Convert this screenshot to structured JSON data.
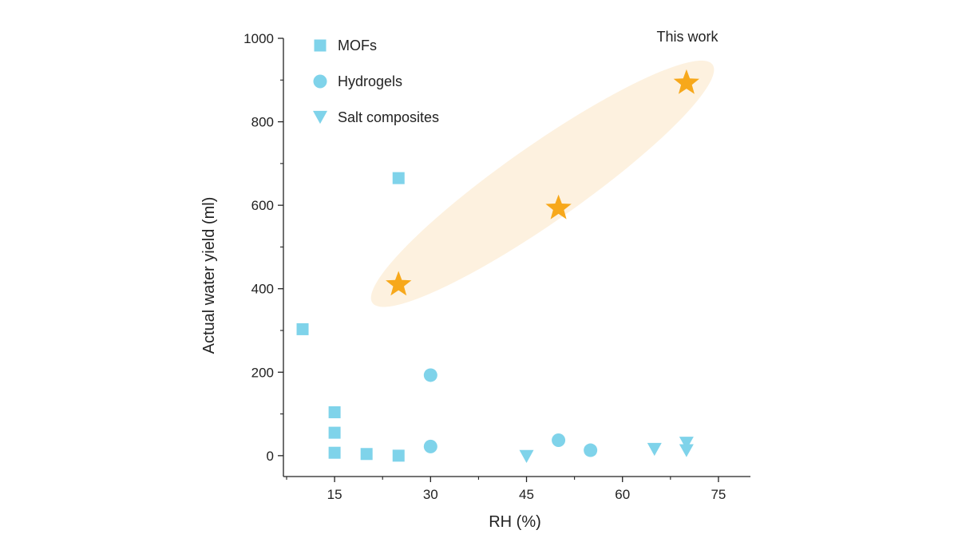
{
  "chart_data": {
    "type": "scatter",
    "xlabel": "RH (%)",
    "ylabel": "Actual water yield (ml)",
    "xlim": [
      7,
      80
    ],
    "ylim": [
      -50,
      1000
    ],
    "xticks": [
      15,
      30,
      45,
      60,
      75
    ],
    "yticks": [
      0,
      200,
      400,
      600,
      800,
      1000
    ],
    "grid": false,
    "legend_position": "top-left",
    "annotation": "This work",
    "highlight_color": "#fdf1df",
    "series": [
      {
        "name": "MOFs",
        "marker": "square",
        "color": "#7fd3ea",
        "points": [
          {
            "x": 10,
            "y": 303
          },
          {
            "x": 15,
            "y": 104
          },
          {
            "x": 15,
            "y": 55
          },
          {
            "x": 15,
            "y": 7
          },
          {
            "x": 20,
            "y": 4
          },
          {
            "x": 25,
            "y": 0
          },
          {
            "x": 25,
            "y": 665
          }
        ]
      },
      {
        "name": "Hydrogels",
        "marker": "circle",
        "color": "#7fd3ea",
        "points": [
          {
            "x": 30,
            "y": 193
          },
          {
            "x": 30,
            "y": 22
          },
          {
            "x": 50,
            "y": 37
          },
          {
            "x": 55,
            "y": 13
          }
        ]
      },
      {
        "name": "Salt composites",
        "marker": "triangle-down",
        "color": "#7fd3ea",
        "points": [
          {
            "x": 45,
            "y": -2
          },
          {
            "x": 65,
            "y": 15
          },
          {
            "x": 70,
            "y": 30
          },
          {
            "x": 70,
            "y": 12
          }
        ]
      },
      {
        "name": "This work",
        "marker": "star",
        "color": "#f7a81b",
        "points": [
          {
            "x": 25,
            "y": 410
          },
          {
            "x": 50,
            "y": 593
          },
          {
            "x": 70,
            "y": 893
          }
        ]
      }
    ]
  }
}
